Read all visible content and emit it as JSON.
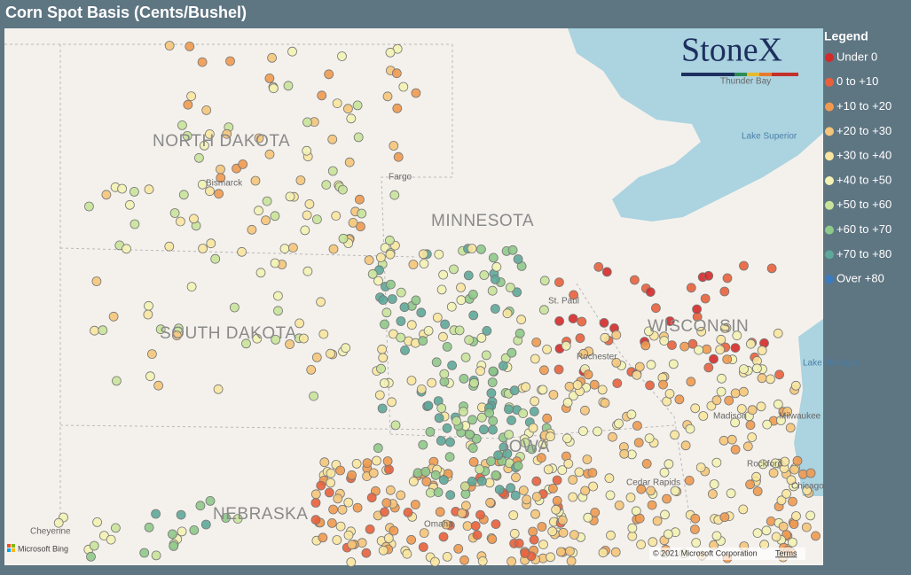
{
  "header": {
    "title": "Corn Spot Basis (Cents/Bushel)"
  },
  "legend": {
    "title": "Legend",
    "items": [
      {
        "label": "Under 0",
        "color": "#d42a2a"
      },
      {
        "label": "0 to +10",
        "color": "#e8603c"
      },
      {
        "label": "+10 to +20",
        "color": "#f09a50"
      },
      {
        "label": "+20 to +30",
        "color": "#f5c57a"
      },
      {
        "label": "+30 to +40",
        "color": "#f8e6a0"
      },
      {
        "label": "+40 to +50",
        "color": "#f3f2b4"
      },
      {
        "label": "+50 to +60",
        "color": "#c9e39a"
      },
      {
        "label": "+60 to +70",
        "color": "#8fc98a"
      },
      {
        "label": "+70 to +80",
        "color": "#5ea89a"
      },
      {
        "label": "Over +80",
        "color": "#3b7bbf"
      }
    ]
  },
  "map": {
    "logo": "StoneX",
    "states": [
      "NORTH DAKOTA",
      "SOUTH DAKOTA",
      "MINNESOTA",
      "WISCONSIN",
      "IOWA",
      "NEBRASKA"
    ],
    "cities": [
      "Bismarck",
      "Fargo",
      "St. Paul",
      "Rochester",
      "Madison",
      "Milwaukee",
      "Chicago",
      "Rockford",
      "Cedar Rapids",
      "Omaha",
      "Cheyenne",
      "Thunder Bay"
    ],
    "waters": [
      "Lake Superior",
      "Lake Michigan"
    ],
    "attribution": {
      "provider": "Microsoft Bing",
      "copyright": "© 2021 Microsoft Corporation",
      "terms": "Terms"
    }
  }
}
